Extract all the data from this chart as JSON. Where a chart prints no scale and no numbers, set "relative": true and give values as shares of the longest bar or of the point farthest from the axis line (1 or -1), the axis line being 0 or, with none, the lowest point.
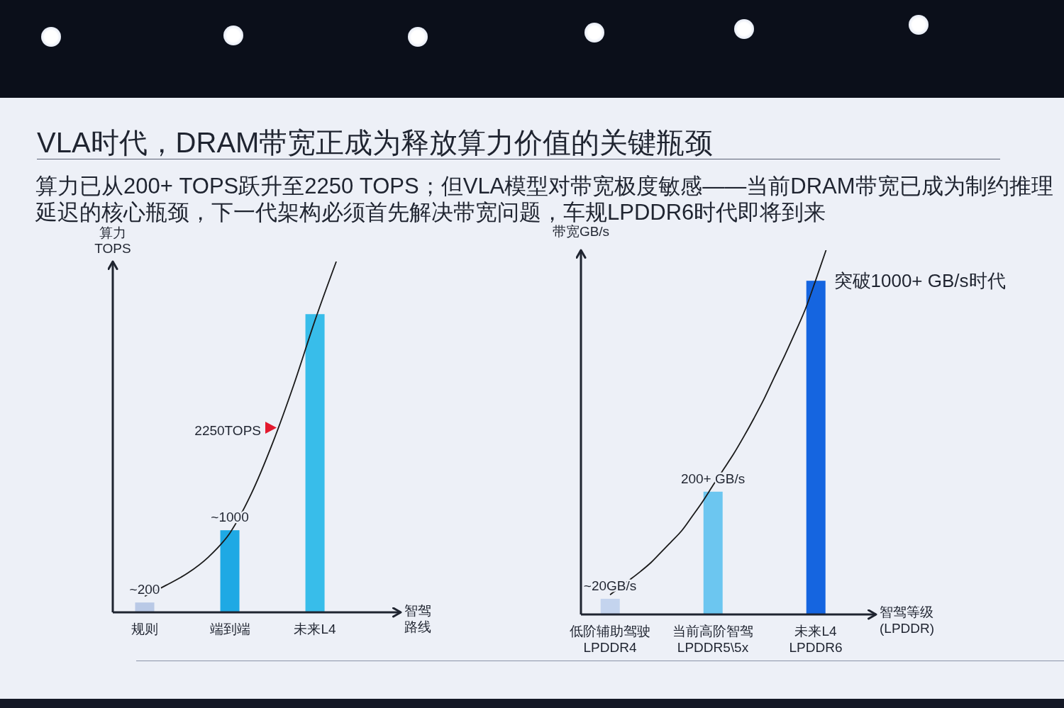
{
  "chart_data": [
    {
      "type": "bar",
      "title": "VLA时代，DRAM带宽正成为释放算力价值的关键瓶颈",
      "subtitle": "算力已从200+ TOPS跃升至2250 TOPS；但VLA模型对带宽极度敏感——当前DRAM带宽已成为制约推理延迟的核心瓶颈，下一代架构必须首先解决带宽问题，车规LPDDR6时代即将到来",
      "xlabel": "智驾路线",
      "ylabel": "算力\nTOPS",
      "relative": true,
      "categories": [
        "规则",
        null,
        null,
        null,
        "端到端",
        null,
        null,
        null,
        "未来L4",
        null
      ],
      "series": [
        {
          "colors": [
            "#b9c9e6",
            null,
            null,
            null,
            "#1ea9e4",
            null,
            null,
            null,
            "#38bdea",
            null
          ],
          "values": [
            0.028,
            null,
            null,
            null,
            0.234,
            null,
            null,
            null,
            0.85,
            null
          ]
        },
        {
          "type": "line",
          "color": "#1a1a1a",
          "values": [
            0.046,
            0.077,
            0.111,
            0.158,
            0.226,
            0.337,
            0.481,
            0.648,
            0.832,
            1
          ]
        }
      ],
      "annotations": [
        {
          "text": "~200",
          "x": "规则",
          "y": 0.028
        },
        {
          "text": "~1000",
          "x": "端到端",
          "y": 0.234
        },
        "2250TOPS"
      ]
    },
    {
      "type": "bar",
      "xlabel": "智驾等级\n(LPDDR)",
      "ylabel": "带宽GB/s",
      "relative": true,
      "categories": [
        "低阶辅助驾驶\nLPDDR4",
        null,
        null,
        null,
        null,
        null,
        null,
        null,
        null,
        null,
        "当前高阶智驾\nLPDDR5\\5x",
        null,
        null,
        null,
        null,
        null,
        null,
        null,
        null,
        null,
        "未来L4\nLPDDR6",
        null
      ],
      "series": [
        {
          "colors": [
            "#c4d4ee",
            null,
            null,
            null,
            null,
            null,
            null,
            null,
            null,
            null,
            "#6cc6f0",
            null,
            null,
            null,
            null,
            null,
            null,
            null,
            null,
            null,
            "#1565e0",
            null
          ],
          "values": [
            0.043,
            null,
            null,
            null,
            null,
            null,
            null,
            null,
            null,
            null,
            0.337,
            null,
            null,
            null,
            null,
            null,
            null,
            null,
            null,
            null,
            0.916,
            null
          ]
        },
        {
          "type": "line",
          "color": "#1a1a1a",
          "values": [
            0.054,
            0.076,
            0.097,
            0.119,
            0.143,
            0.172,
            0.201,
            0.231,
            0.27,
            0.31,
            0.354,
            0.397,
            0.44,
            0.488,
            0.539,
            0.593,
            0.653,
            0.712,
            0.774,
            0.839,
            0.918,
            1
          ]
        }
      ],
      "annotations": [
        {
          "text": "~20GB/s",
          "x": "低阶辅助驾驶\nLPDDR4",
          "y": 0.043
        },
        {
          "text": "200+ GB/s",
          "x": "当前高阶智驾\nLPDDR5\\5x",
          "y": 0.337
        },
        {
          "text": "突破1000+ GB/s时代",
          "x": "未来L4\nLPDDR6",
          "y": 0.916
        }
      ]
    }
  ]
}
